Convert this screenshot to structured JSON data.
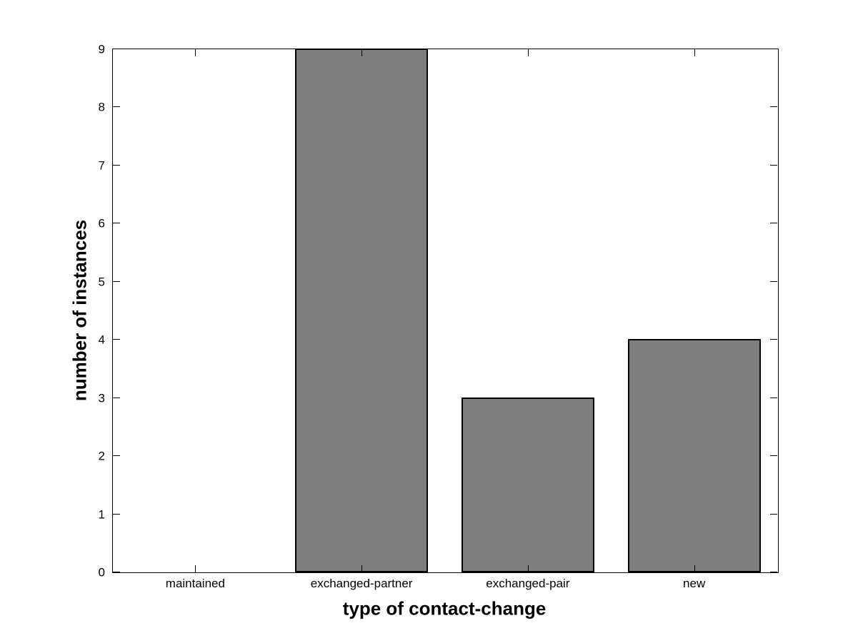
{
  "figure": {
    "background_color": "#ffffff",
    "axes_box_color": "#000000"
  },
  "chart_data": {
    "type": "bar",
    "title": "",
    "xlabel": "type of contact-change",
    "ylabel": "number of instances",
    "categories": [
      "maintained",
      "exchanged-partner",
      "exchanged-pair",
      "new"
    ],
    "values": [
      0,
      9,
      3,
      4
    ],
    "ylim": [
      0,
      9
    ],
    "yticks": [
      0,
      1,
      2,
      3,
      4,
      5,
      6,
      7,
      8,
      9
    ],
    "bar_color": "#7f7f7f",
    "bar_edge_color": "#000000",
    "bar_width_fraction": 0.8,
    "grid": "off",
    "legend": "none",
    "tick_direction": "in"
  }
}
